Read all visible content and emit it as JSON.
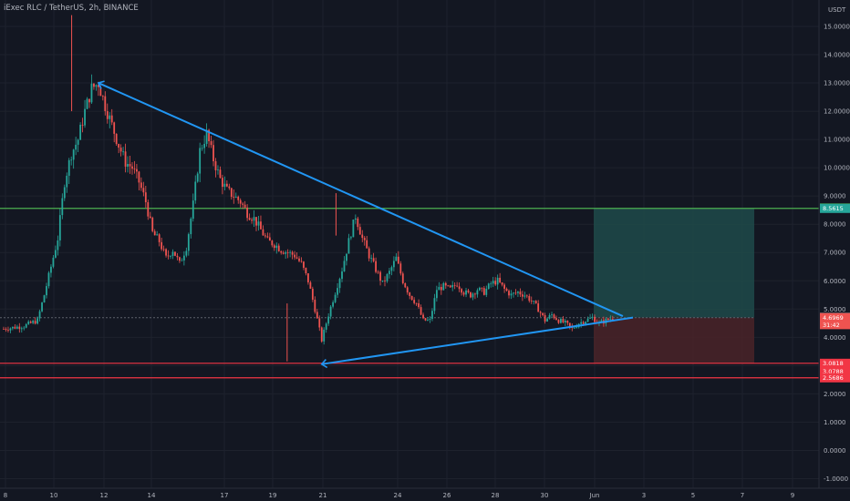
{
  "symbol_info": "iExec RLC / TetherUS, 2h, BINANCE",
  "colors": {
    "background": "#131722",
    "grid": "#1e222d",
    "up": "#26a69a",
    "down": "#ef5350",
    "trendline": "#2196f3",
    "green_line": "#4caf50",
    "red_line": "#f23645",
    "profit_zone": "#1f4a4a",
    "loss_zone": "#4a2328"
  },
  "chart_data": {
    "type": "candlestick",
    "y_unit": "USDT",
    "ylim": [
      -1.0,
      15.5
    ],
    "yticks": [
      "15.0000",
      "14.0000",
      "13.0000",
      "12.0000",
      "11.0000",
      "10.0000",
      "9.0000",
      "8.0000",
      "7.0000",
      "6.0000",
      "5.0000",
      "4.0000",
      "3.0000",
      "2.0000",
      "1.0000",
      "0.0000",
      "-1.0000"
    ],
    "xticks": [
      "8",
      "10",
      "12",
      "14",
      "17",
      "19",
      "21",
      "24",
      "26",
      "28",
      "30",
      "Jun",
      "3",
      "5",
      "7",
      "9"
    ],
    "price_anchors": [
      [
        0,
        4.3
      ],
      [
        3,
        4.4
      ],
      [
        5,
        4.6
      ],
      [
        6,
        5.5
      ],
      [
        7,
        6.5
      ],
      [
        8,
        7.5
      ],
      [
        9,
        9.5
      ],
      [
        10,
        10.5
      ],
      [
        11,
        11.0
      ],
      [
        12,
        12.0
      ],
      [
        13,
        12.8
      ],
      [
        14,
        13.0
      ],
      [
        15,
        12.2
      ],
      [
        16,
        11.5
      ],
      [
        17,
        10.8
      ],
      [
        18,
        10.2
      ],
      [
        19,
        10.0
      ],
      [
        20,
        9.5
      ],
      [
        21,
        8.8
      ],
      [
        22,
        7.7
      ],
      [
        23,
        7.4
      ],
      [
        24,
        6.8
      ],
      [
        25,
        7.1
      ],
      [
        26,
        6.6
      ],
      [
        27,
        7.2
      ],
      [
        28,
        8.7
      ],
      [
        29,
        10.6
      ],
      [
        30,
        11.2
      ],
      [
        31,
        10.3
      ],
      [
        32,
        9.6
      ],
      [
        33,
        9.2
      ],
      [
        34,
        9.0
      ],
      [
        35,
        8.8
      ],
      [
        36,
        8.4
      ],
      [
        37,
        8.2
      ],
      [
        38,
        7.8
      ],
      [
        39,
        7.4
      ],
      [
        40,
        7.3
      ],
      [
        41,
        7.1
      ],
      [
        42,
        7.0
      ],
      [
        43,
        6.9
      ],
      [
        44,
        6.6
      ],
      [
        45,
        6.0
      ],
      [
        46,
        5.0
      ],
      [
        47,
        3.9
      ],
      [
        48,
        4.8
      ],
      [
        49,
        5.6
      ],
      [
        50,
        6.4
      ],
      [
        51,
        7.4
      ],
      [
        52,
        8.3
      ],
      [
        53,
        7.5
      ],
      [
        54,
        6.9
      ],
      [
        55,
        6.4
      ],
      [
        56,
        5.9
      ],
      [
        57,
        6.3
      ],
      [
        58,
        6.8
      ],
      [
        59,
        6.0
      ],
      [
        60,
        5.5
      ],
      [
        61,
        5.2
      ],
      [
        62,
        4.6
      ],
      [
        63,
        4.6
      ],
      [
        64,
        5.7
      ],
      [
        65,
        5.8
      ],
      [
        66,
        5.7
      ],
      [
        67,
        5.9
      ],
      [
        68,
        5.6
      ],
      [
        69,
        5.5
      ],
      [
        70,
        5.7
      ],
      [
        71,
        5.6
      ],
      [
        72,
        5.9
      ],
      [
        73,
        6.0
      ],
      [
        74,
        5.7
      ],
      [
        75,
        5.5
      ],
      [
        76,
        5.6
      ],
      [
        77,
        5.5
      ],
      [
        78,
        5.3
      ],
      [
        79,
        5.0
      ],
      [
        80,
        4.6
      ],
      [
        81,
        4.8
      ],
      [
        82,
        4.6
      ],
      [
        83,
        4.5
      ],
      [
        84,
        4.3
      ],
      [
        85,
        4.5
      ],
      [
        86,
        4.6
      ],
      [
        87,
        4.7
      ],
      [
        88,
        4.5
      ],
      [
        89,
        4.6
      ],
      [
        90,
        4.7
      ]
    ],
    "spikes": [
      {
        "x_frac": 0.0843,
        "high": 15.4,
        "low": 12.0
      },
      {
        "x_frac": 0.3378,
        "high": 5.2,
        "low": 3.15
      },
      {
        "x_frac": 0.3953,
        "high": 9.1,
        "low": 7.6
      }
    ],
    "trendlines": [
      {
        "from": [
          14,
          13.0
        ],
        "to": [
          91.5,
          4.75
        ]
      },
      {
        "from": [
          47,
          3.05
        ],
        "to": [
          93,
          4.7
        ]
      }
    ],
    "horizontal_lines": [
      {
        "price": 8.5615,
        "color": "green_line"
      },
      {
        "price": 3.0818,
        "color": "red_line"
      },
      {
        "price": 2.5686,
        "color": "red_line"
      }
    ],
    "position_box": {
      "entry": 4.6969,
      "target": 8.5615,
      "stop": 3.0818
    },
    "price_tags": [
      {
        "label": "8.5750",
        "price": 8.575,
        "bg": "#4caf50"
      },
      {
        "label": "8.5615",
        "price": 8.5615,
        "bg": "#26a69a"
      },
      {
        "label": "4.7054",
        "price": 4.7054,
        "bg": "#b2b5be",
        "fg": "#131722"
      },
      {
        "label": "4.6969",
        "price": 4.6969,
        "bg": "#ef5350"
      },
      {
        "label": "31:42",
        "price": 4.45,
        "bg": "#ef5350"
      },
      {
        "label": "3.0818",
        "price": 3.0818,
        "bg": "#f23645"
      },
      {
        "label": "3.0788",
        "price": 2.8,
        "bg": "#f23645"
      },
      {
        "label": "2.5686",
        "price": 2.5686,
        "bg": "#f23645"
      }
    ]
  }
}
